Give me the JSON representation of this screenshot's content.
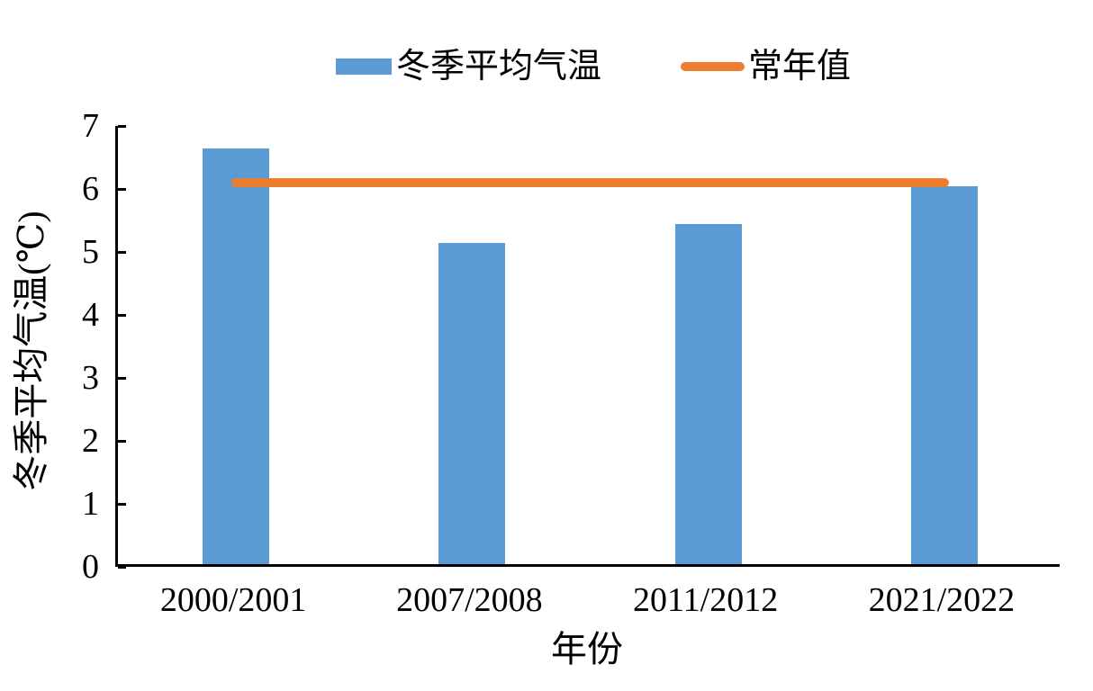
{
  "chart_data": {
    "type": "bar",
    "title": "",
    "categories": [
      "2000/2001",
      "2007/2008",
      "2011/2012",
      "2021/2022"
    ],
    "series": [
      {
        "name": "冬季平均气温",
        "type": "bar",
        "color": "#5B9BD5",
        "values": [
          6.6,
          5.1,
          5.4,
          6.0
        ]
      },
      {
        "name": "常年值",
        "type": "line",
        "color": "#ED7D31",
        "values": [
          6.1,
          6.1,
          6.1,
          6.1
        ]
      }
    ],
    "xlabel": "年份",
    "ylabel": "冬季平均气温(℃)",
    "ylim": [
      0,
      7
    ],
    "yticks": [
      0,
      1,
      2,
      3,
      4,
      5,
      6,
      7
    ],
    "legend_position": "top",
    "grid": false,
    "axis_color": "#000000",
    "text_color": "#000000"
  },
  "legend": {
    "items": [
      {
        "label": "冬季平均气温",
        "swatch": "bar",
        "color": "#5B9BD5"
      },
      {
        "label": "常年值",
        "swatch": "line",
        "color": "#ED7D31"
      }
    ]
  }
}
